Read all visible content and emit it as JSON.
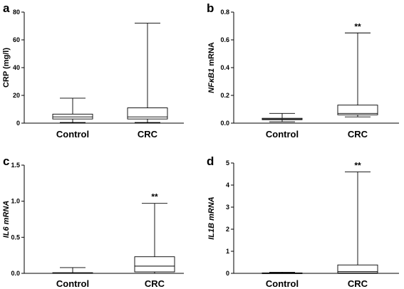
{
  "chart_data": [
    {
      "type": "box",
      "panel": "a",
      "ylabel": "CRP (mg/l)",
      "ylabel_italic": "",
      "ylim": [
        0,
        80
      ],
      "yticks": [
        0,
        20,
        40,
        60,
        80
      ],
      "ytick_labels": [
        "0",
        "20",
        "40",
        "60",
        "80"
      ],
      "categories": [
        "Control",
        "CRC"
      ],
      "boxes": [
        {
          "min": 0.5,
          "q1": 3.0,
          "median": 4.5,
          "q3": 6.5,
          "max": 18.0
        },
        {
          "min": 0.5,
          "q1": 3.0,
          "median": 4.5,
          "q3": 11.0,
          "max": 72.0
        }
      ],
      "significance": [
        "",
        ""
      ]
    },
    {
      "type": "box",
      "panel": "b",
      "ylabel": "mRNA",
      "ylabel_italic": "NFκB1",
      "ylim": [
        0,
        0.8
      ],
      "yticks": [
        0,
        0.2,
        0.4,
        0.6,
        0.8
      ],
      "ytick_labels": [
        "0.0",
        "0.2",
        "0.4",
        "0.6",
        "0.8"
      ],
      "categories": [
        "Control",
        "CRC"
      ],
      "boxes": [
        {
          "min": 0.01,
          "q1": 0.025,
          "median": 0.03,
          "q3": 0.035,
          "max": 0.07
        },
        {
          "min": 0.045,
          "q1": 0.06,
          "median": 0.07,
          "q3": 0.13,
          "max": 0.65
        }
      ],
      "significance": [
        "",
        "**"
      ]
    },
    {
      "type": "box",
      "panel": "c",
      "ylabel": "",
      "ylabel_italic": "IL6 mRNA",
      "ylim": [
        0,
        1.5
      ],
      "yticks": [
        0,
        0.5,
        1.0,
        1.5
      ],
      "ytick_labels": [
        "0.0",
        "0.5",
        "1.0",
        "1.5"
      ],
      "categories": [
        "Control",
        "CRC"
      ],
      "boxes": [
        {
          "min": 0.0,
          "q1": 0.003,
          "median": 0.006,
          "q3": 0.009,
          "max": 0.08
        },
        {
          "min": 0.0,
          "q1": 0.02,
          "median": 0.1,
          "q3": 0.23,
          "max": 0.97
        }
      ],
      "significance": [
        "",
        "**"
      ]
    },
    {
      "type": "box",
      "panel": "d",
      "ylabel": "",
      "ylabel_italic": "IL1B mRNA",
      "ylim": [
        0,
        5
      ],
      "yticks": [
        0,
        1,
        2,
        3,
        4,
        5
      ],
      "ytick_labels": [
        "0",
        "1",
        "2",
        "3",
        "4",
        "5"
      ],
      "categories": [
        "Control",
        "CRC"
      ],
      "boxes": [
        {
          "min": 0.0,
          "q1": 0.005,
          "median": 0.01,
          "q3": 0.02,
          "max": 0.05
        },
        {
          "min": 0.0,
          "q1": 0.02,
          "median": 0.08,
          "q3": 0.38,
          "max": 4.6
        }
      ],
      "significance": [
        "",
        "**"
      ]
    }
  ]
}
